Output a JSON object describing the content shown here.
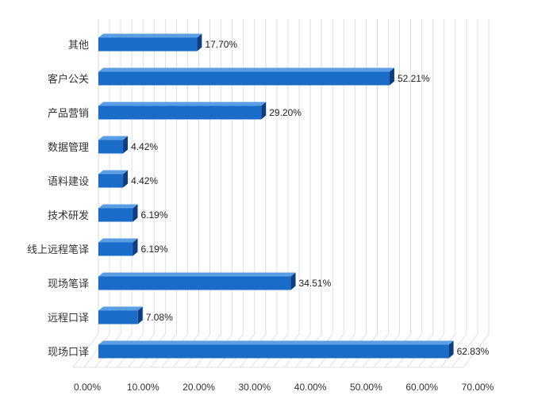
{
  "chart_data": {
    "type": "bar",
    "orientation": "horizontal",
    "categories": [
      "其他",
      "客户公关",
      "产品营销",
      "数据管理",
      "语料建设",
      "技术研发",
      "线上远程笔译",
      "现场笔译",
      "远程口译",
      "现场口译"
    ],
    "values": [
      17.7,
      52.21,
      29.2,
      4.42,
      4.42,
      6.19,
      6.19,
      34.51,
      7.08,
      62.83
    ],
    "data_labels": [
      "17.70%",
      "52.21%",
      "29.20%",
      "4.42%",
      "4.42%",
      "6.19%",
      "6.19%",
      "34.51%",
      "7.08%",
      "62.83%"
    ],
    "x_ticks": [
      "0.00%",
      "10.00%",
      "20.00%",
      "30.00%",
      "40.00%",
      "50.00%",
      "60.00%",
      "70.00%"
    ],
    "xlim": [
      0,
      70
    ],
    "title": "",
    "xlabel": "",
    "ylabel": "",
    "grid": true,
    "legend": "none",
    "colors": {
      "bar_front": "#1a6cc8",
      "bar_top": "#5a9ee6",
      "bar_side": "#0d3f80",
      "grid": "#d9d9d9"
    }
  }
}
